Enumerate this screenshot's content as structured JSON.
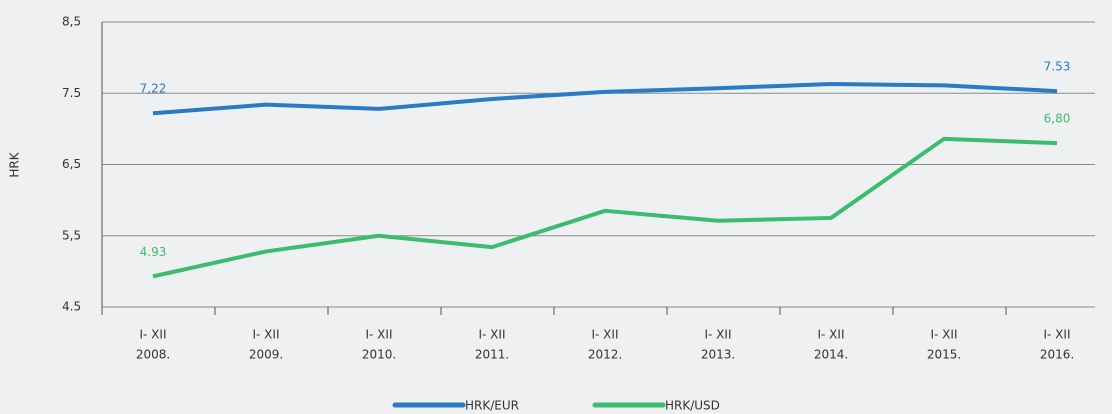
{
  "chart_data": {
    "type": "line",
    "y_label": "HRK",
    "categories": [
      [
        "I- XII",
        "2008."
      ],
      [
        "I- XII",
        "2009."
      ],
      [
        "I- XII",
        "2010."
      ],
      [
        "I- XII",
        "2011."
      ],
      [
        "I- XII",
        "2012."
      ],
      [
        "I- XII",
        "2013."
      ],
      [
        "I- XII",
        "2014."
      ],
      [
        "I- XII",
        "2015."
      ],
      [
        "I- XII",
        "2016."
      ]
    ],
    "series": [
      {
        "name": "HRK/EUR",
        "color": "#2a7bc1",
        "values": [
          7.22,
          7.34,
          7.28,
          7.42,
          7.52,
          7.57,
          7.63,
          7.61,
          7.53
        ],
        "value_labels": [
          "7,22",
          null,
          null,
          null,
          null,
          null,
          null,
          null,
          "7.53"
        ]
      },
      {
        "name": "HRK/USD",
        "color": "#3dbb6e",
        "values": [
          4.93,
          5.28,
          5.5,
          5.34,
          5.85,
          5.71,
          5.75,
          6.86,
          6.8
        ],
        "value_labels": [
          "4.93",
          null,
          null,
          null,
          null,
          null,
          null,
          null,
          "6,80"
        ]
      }
    ],
    "ylim": [
      4.5,
      8.5
    ],
    "yticks": [
      {
        "value": 4.5,
        "label": "4.5"
      },
      {
        "value": 5.5,
        "label": "5,5"
      },
      {
        "value": 6.5,
        "label": "6,5"
      },
      {
        "value": 7.5,
        "label": "7.5"
      },
      {
        "value": 8.5,
        "label": "8,5"
      }
    ],
    "grid": true,
    "legend": "bottom"
  }
}
